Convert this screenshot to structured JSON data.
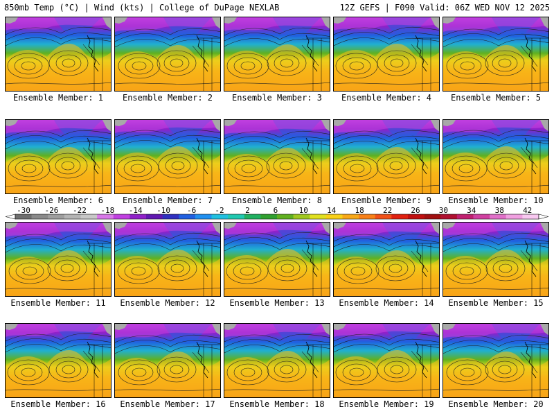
{
  "header": {
    "title_left": "850mb Temp (°C) | Wind (kts) | College of DuPage NEXLAB",
    "title_right": "12Z GEFS | F090 Valid: 06Z WED NOV 12 2025"
  },
  "members": [
    {
      "label": "Ensemble Member: 1"
    },
    {
      "label": "Ensemble Member: 2"
    },
    {
      "label": "Ensemble Member: 3"
    },
    {
      "label": "Ensemble Member: 4"
    },
    {
      "label": "Ensemble Member: 5"
    },
    {
      "label": "Ensemble Member: 6"
    },
    {
      "label": "Ensemble Member: 7"
    },
    {
      "label": "Ensemble Member: 8"
    },
    {
      "label": "Ensemble Member: 9"
    },
    {
      "label": "Ensemble Member: 10"
    },
    {
      "label": "Ensemble Member: 11"
    },
    {
      "label": "Ensemble Member: 12"
    },
    {
      "label": "Ensemble Member: 13"
    },
    {
      "label": "Ensemble Member: 14"
    },
    {
      "label": "Ensemble Member: 15"
    },
    {
      "label": "Ensemble Member: 16"
    },
    {
      "label": "Ensemble Member: 17"
    },
    {
      "label": "Ensemble Member: 18"
    },
    {
      "label": "Ensemble Member: 19"
    },
    {
      "label": "Ensemble Member: 20"
    }
  ],
  "colorbar": {
    "tick_labels": [
      "-30",
      "-26",
      "-22",
      "-18",
      "-14",
      "-10",
      "-6",
      "-2",
      "2",
      "6",
      "10",
      "14",
      "18",
      "22",
      "26",
      "30",
      "34",
      "38",
      "42"
    ],
    "colors": [
      "#6e6e6e",
      "#8a8a8a",
      "#9e9e9e",
      "#b4b4b4",
      "#c8c8c8",
      "#d878e8",
      "#c040e0",
      "#9020c8",
      "#6018b0",
      "#3030c0",
      "#2060e0",
      "#2090f0",
      "#20c0e0",
      "#20c8b0",
      "#20b060",
      "#30a030",
      "#60b020",
      "#a0c820",
      "#e0e020",
      "#f8d018",
      "#f8a818",
      "#f88018",
      "#f05018",
      "#e02010",
      "#c01010",
      "#a01010",
      "#b01030",
      "#c02070",
      "#d040a0",
      "#e070c8",
      "#f0a0e0",
      "#f8c8f0"
    ]
  },
  "colors": {
    "land_gray": "#a8a8a8",
    "contour": "#202020"
  }
}
